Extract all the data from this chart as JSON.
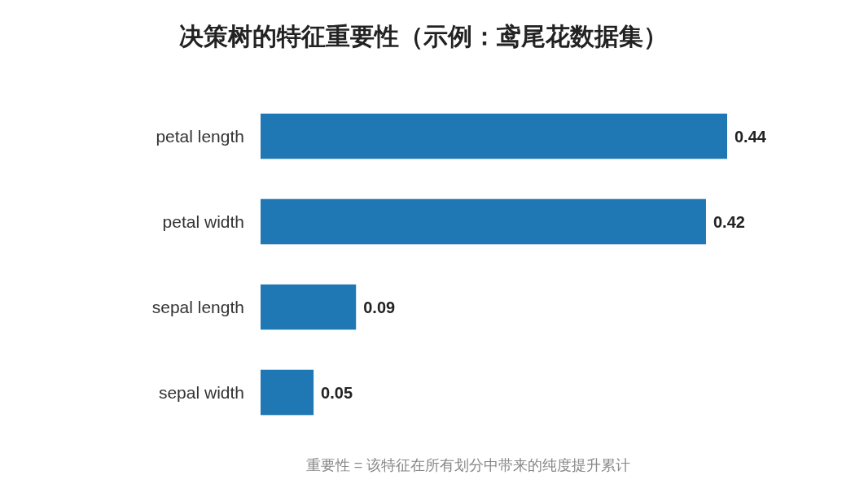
{
  "chart_data": {
    "type": "bar",
    "orientation": "horizontal",
    "title": "决策树的特征重要性（示例：鸢尾花数据集）",
    "categories": [
      "petal length",
      "petal width",
      "sepal length",
      "sepal width"
    ],
    "values": [
      0.44,
      0.42,
      0.09,
      0.05
    ],
    "color": "#1f77b4",
    "data_labels": true,
    "annotations": [
      "重要性 = 该特征在所有划分中带来的纯度提升累计"
    ]
  }
}
